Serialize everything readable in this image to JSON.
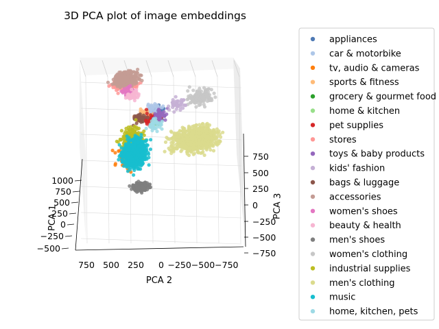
{
  "chart_data": {
    "type": "scatter",
    "projection": "3d",
    "title": "3D PCA plot of image embeddings",
    "xlabel": "PCA 1",
    "ylabel": "PCA 2",
    "zlabel": "PCA 3",
    "xlim": [
      -500,
      1000
    ],
    "ylim": [
      -750,
      750
    ],
    "zlim": [
      -750,
      750
    ],
    "x_ticks": [
      "1000",
      "750",
      "500",
      "250",
      "0",
      "−250",
      "−500"
    ],
    "y_ticks": [
      "750",
      "500",
      "250",
      "0",
      "−250−500−750"
    ],
    "z_ticks": [
      "750",
      "500",
      "250",
      "0",
      "−250",
      "−500",
      "−750"
    ],
    "grid": true,
    "legend_position": "right",
    "series": [
      {
        "name": "appliances",
        "color": "#4e79b4",
        "center": [
          180,
          80,
          360
        ]
      },
      {
        "name": "car & motorbike",
        "color": "#aec7e8",
        "center": [
          220,
          120,
          380
        ]
      },
      {
        "name": "tv, audio & cameras",
        "color": "#ff7f0e",
        "center": [
          -150,
          300,
          0
        ]
      },
      {
        "name": "sports & fitness",
        "color": "#ffbb78",
        "center": [
          150,
          200,
          350
        ]
      },
      {
        "name": "grocery & gourmet food",
        "color": "#2ca02c",
        "center": [
          120,
          100,
          300
        ]
      },
      {
        "name": "home & kitchen",
        "color": "#98df8a",
        "center": [
          150,
          150,
          320
        ]
      },
      {
        "name": "pet supplies",
        "color": "#d62728",
        "center": [
          100,
          120,
          310
        ]
      },
      {
        "name": "stores",
        "color": "#ff9896",
        "center": [
          350,
          450,
          600
        ]
      },
      {
        "name": "toys & baby products",
        "color": "#9467bd",
        "center": [
          150,
          50,
          330
        ]
      },
      {
        "name": "kids' fashion",
        "color": "#c5b0d5",
        "center": [
          300,
          -100,
          400
        ]
      },
      {
        "name": "bags & luggage",
        "color": "#8c564b",
        "center": [
          150,
          250,
          300
        ]
      },
      {
        "name": "accessories",
        "color": "#c49c94",
        "center": [
          400,
          450,
          650
        ]
      },
      {
        "name": "women's shoes",
        "color": "#e377c2",
        "center": [
          300,
          400,
          550
        ]
      },
      {
        "name": "beauty & health",
        "color": "#f7b6d2",
        "center": [
          300,
          350,
          500
        ]
      },
      {
        "name": "men's shoes",
        "color": "#7f7f7f",
        "center": [
          -300,
          150,
          -300
        ]
      },
      {
        "name": "women's clothing",
        "color": "#c7c7c7",
        "center": [
          250,
          -350,
          500
        ]
      },
      {
        "name": "industrial supplies",
        "color": "#bcbd22",
        "center": [
          0,
          300,
          100
        ]
      },
      {
        "name": "men's clothing",
        "color": "#dbdb8d",
        "center": [
          -50,
          -350,
          150
        ]
      },
      {
        "name": "music",
        "color": "#17becf",
        "center": [
          -100,
          250,
          0
        ]
      },
      {
        "name": "home, kitchen, pets",
        "color": "#9edae5",
        "center": [
          100,
          100,
          250
        ]
      }
    ]
  }
}
